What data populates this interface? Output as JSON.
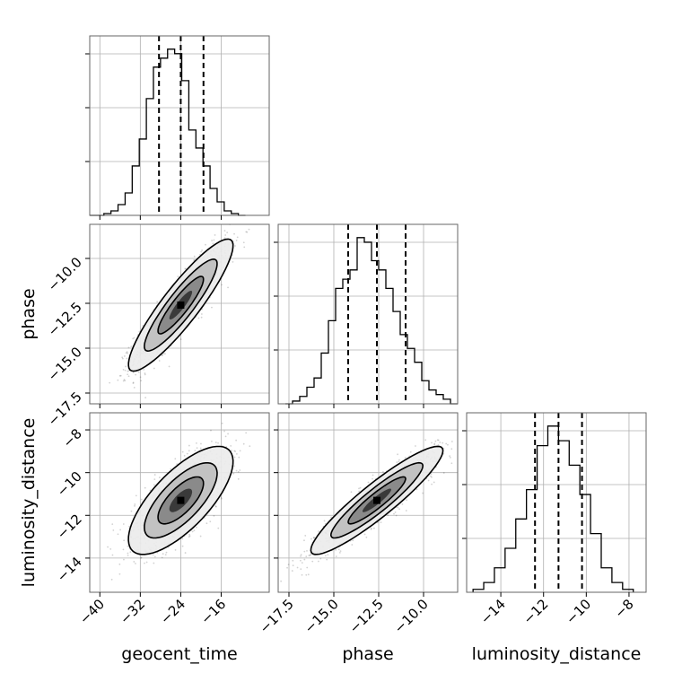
{
  "chart_data": {
    "type": "corner",
    "parameters": [
      "geocent_time",
      "phase",
      "luminosity_distance"
    ],
    "grid": true,
    "ranges": {
      "geocent_time": [
        -42.0,
        -6.5
      ],
      "phase": [
        -18.1,
        -8.1
      ],
      "luminosity_distance": [
        -15.6,
        -7.2
      ]
    },
    "ticks": {
      "geocent_time": {
        "values": [
          -40,
          -32,
          -24,
          -16
        ],
        "labels": [
          "−40",
          "−32",
          "−24",
          "−16"
        ]
      },
      "phase": {
        "values": [
          -17.5,
          -15.0,
          -12.5,
          -10.0
        ],
        "labels": [
          "−17.5",
          "−15.0",
          "−12.5",
          "−10.0"
        ]
      },
      "luminosity_distance": {
        "values": [
          -14,
          -12,
          -10,
          -8
        ],
        "labels": [
          "−14",
          "−12",
          "−10",
          "−8"
        ]
      }
    },
    "axis_labels": {
      "geocent_time": "geocent_time",
      "phase": "phase",
      "luminosity_distance": "luminosity_distance"
    },
    "quantiles": {
      "geocent_time": [
        -28.3,
        -24.0,
        -19.5
      ],
      "phase": [
        -14.2,
        -12.6,
        -11.0
      ],
      "luminosity_distance": [
        -12.4,
        -11.3,
        -10.2
      ]
    },
    "histograms": [
      {
        "parameter": "geocent_time",
        "bin_edges": [
          -42.0,
          -40.6,
          -39.2,
          -37.8,
          -36.4,
          -35.0,
          -33.6,
          -32.2,
          -30.8,
          -29.4,
          -28.0,
          -26.6,
          -25.2,
          -23.8,
          -22.4,
          -21.0,
          -19.6,
          -18.2,
          -16.8,
          -15.4,
          -14.0,
          -12.6,
          -11.2
        ],
        "counts": [
          0,
          0,
          2,
          5,
          12,
          25,
          55,
          85,
          130,
          165,
          175,
          185,
          180,
          150,
          95,
          75,
          55,
          30,
          15,
          5,
          2,
          0
        ]
      },
      {
        "parameter": "phase",
        "bin_edges": [
          -17.7,
          -17.3,
          -16.9,
          -16.5,
          -16.1,
          -15.7,
          -15.3,
          -14.9,
          -14.5,
          -14.1,
          -13.7,
          -13.3,
          -12.9,
          -12.5,
          -12.1,
          -11.7,
          -11.3,
          -10.9,
          -10.5,
          -10.1,
          -9.7,
          -9.3,
          -8.9,
          -8.5,
          -8.1
        ],
        "counts": [
          0,
          3,
          8,
          18,
          28,
          55,
          90,
          125,
          135,
          145,
          180,
          175,
          155,
          145,
          125,
          100,
          75,
          60,
          45,
          25,
          15,
          10,
          5,
          0
        ]
      },
      {
        "parameter": "luminosity_distance",
        "bin_edges": [
          -15.3,
          -14.8,
          -14.3,
          -13.8,
          -13.3,
          -12.8,
          -12.3,
          -11.8,
          -11.3,
          -10.8,
          -10.3,
          -9.8,
          -9.3,
          -8.8,
          -8.3,
          -7.8
        ],
        "counts": [
          3,
          10,
          25,
          45,
          75,
          105,
          150,
          170,
          155,
          130,
          100,
          60,
          25,
          10,
          3
        ]
      }
    ],
    "pairs": [
      {
        "x": "geocent_time",
        "y": "phase",
        "center": [
          -24.0,
          -12.6
        ],
        "sigma": [
          4.5,
          1.6
        ],
        "correlation": 0.9
      },
      {
        "x": "geocent_time",
        "y": "luminosity_distance",
        "center": [
          -24.0,
          -11.3
        ],
        "sigma": [
          4.5,
          1.1
        ],
        "correlation": 0.72
      },
      {
        "x": "phase",
        "y": "luminosity_distance",
        "center": [
          -12.6,
          -11.3
        ],
        "sigma": [
          1.6,
          1.1
        ],
        "correlation": 0.92
      }
    ]
  }
}
